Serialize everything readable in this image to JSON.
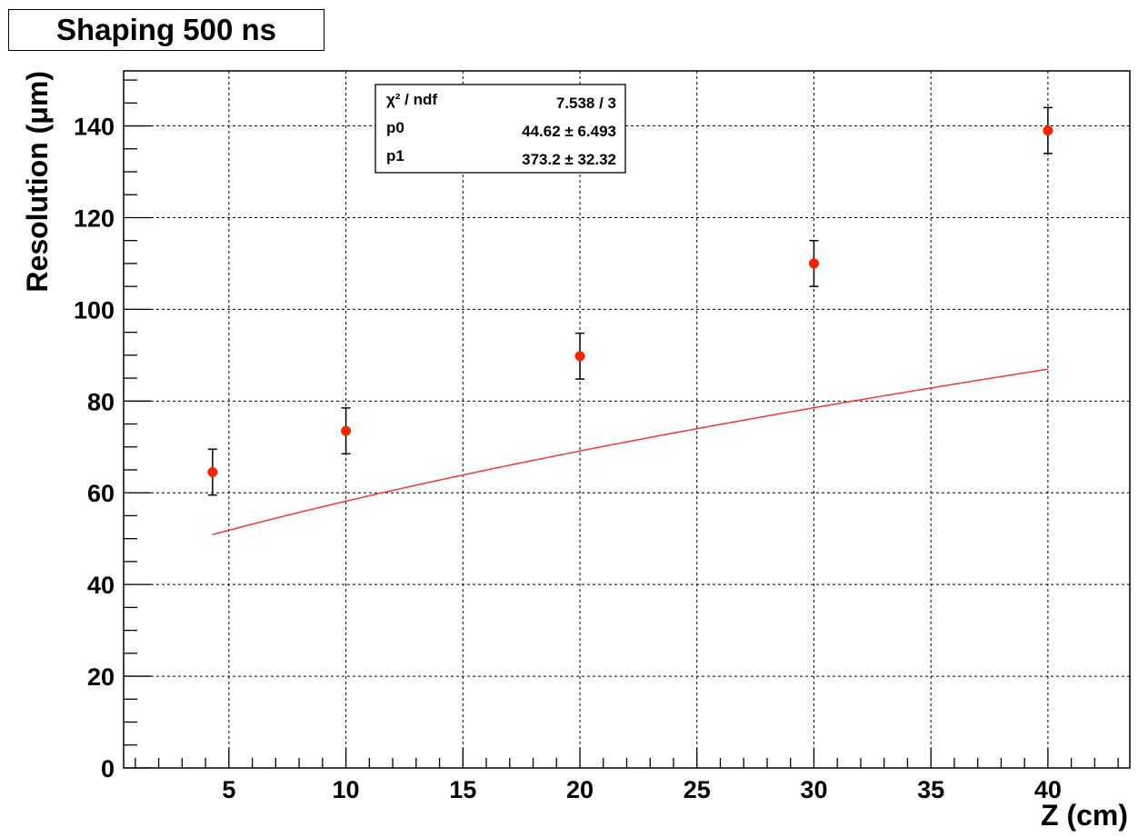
{
  "title": "Shaping 500 ns",
  "stats_box": {
    "rows": [
      {
        "name": "χ² / ndf",
        "value": "7.538 / 3"
      },
      {
        "name": "p0",
        "value": "44.62 ± 6.493"
      },
      {
        "name": "p1",
        "value": "373.2 ± 32.32"
      }
    ]
  },
  "chart_data": {
    "type": "scatter",
    "title": "Shaping 500 ns",
    "xlabel": "Z (cm)",
    "ylabel": "Resolution (μm)",
    "xlim": [
      0.5,
      43.5
    ],
    "ylim": [
      0,
      152
    ],
    "x_ticks": [
      5,
      10,
      15,
      20,
      25,
      30,
      35,
      40
    ],
    "y_ticks": [
      0,
      20,
      40,
      60,
      80,
      100,
      120,
      140
    ],
    "grid": true,
    "series": [
      {
        "x": [
          4.3,
          10,
          20,
          30,
          40
        ],
        "y": [
          64.5,
          73.5,
          89.8,
          110,
          139
        ],
        "y_err": [
          5,
          5,
          5,
          5,
          5
        ],
        "color": "#ff2200"
      }
    ],
    "fit": {
      "function": "sqrt(p0^2 + p1^2 * Z / 1000)",
      "p0": 44.62,
      "p1": 373.2,
      "x_range": [
        4.3,
        40
      ],
      "color": "#ff3333"
    }
  }
}
